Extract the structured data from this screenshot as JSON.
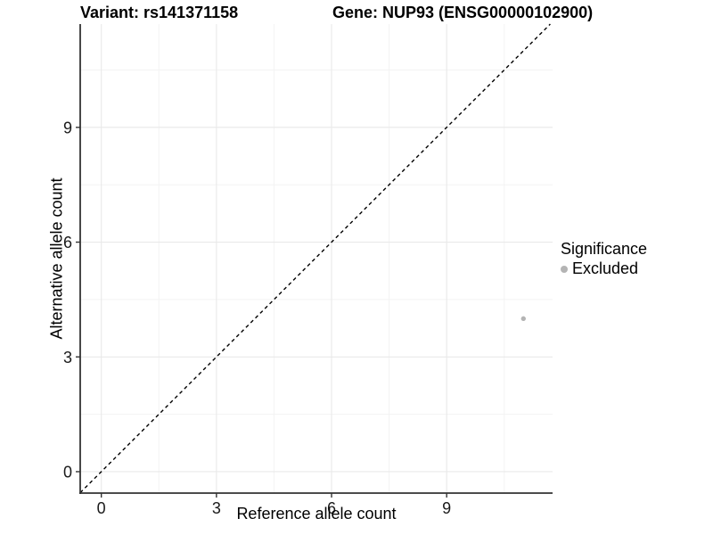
{
  "header": {
    "variant_title": "Variant: rs141371158",
    "gene_title": "Gene: NUP93 (ENSG00000102900)"
  },
  "chart_data": {
    "type": "scatter",
    "xlabel": "Reference allele count",
    "ylabel": "Alternative allele count",
    "xlim": [
      -0.55,
      11.76
    ],
    "ylim": [
      -0.56,
      11.7
    ],
    "x_ticks": [
      0,
      3,
      6,
      9
    ],
    "y_ticks": [
      0,
      3,
      6,
      9
    ],
    "x_minor_ticks": [
      1.5,
      4.5,
      7.5,
      10.5
    ],
    "y_minor_ticks": [
      1.5,
      4.5,
      7.5,
      10.5
    ],
    "grid": {
      "major_color": "#e9e9e9",
      "minor_color": "#f3f3f3"
    },
    "identity_line": {
      "style": "dashed",
      "color": "#000000"
    },
    "series": [
      {
        "name": "Excluded",
        "color": "#b4b4b4",
        "points": [
          {
            "x": 11,
            "y": 4
          }
        ]
      }
    ],
    "legend": {
      "title": "Significance",
      "position": "right",
      "items": [
        {
          "label": "Excluded",
          "color": "#b4b4b4"
        }
      ]
    },
    "axis_color": "#333333",
    "tick_label_color": "#1a1a1a",
    "tick_label_size": 18
  }
}
